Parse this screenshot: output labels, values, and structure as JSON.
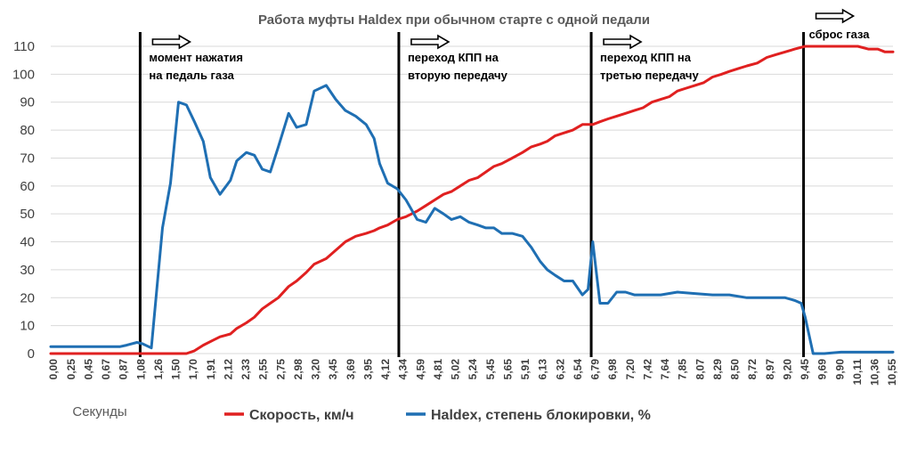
{
  "chart_data": {
    "type": "line",
    "title": "Работа муфты Haldex при обычном старте с одной педали",
    "xlabel": "Секунды",
    "ylabel": "",
    "ylim": [
      0,
      110
    ],
    "yticks": [
      0,
      10,
      20,
      30,
      40,
      50,
      60,
      70,
      80,
      90,
      100,
      110
    ],
    "grid": true,
    "legend_position": "bottom",
    "x_tick_labels": [
      "0,00",
      "0,25",
      "0,45",
      "0,67",
      "0,87",
      "1,08",
      "1,26",
      "1,50",
      "1,70",
      "1,91",
      "2,12",
      "2,33",
      "2,55",
      "2,75",
      "2,98",
      "3,20",
      "3,45",
      "3,69",
      "3,95",
      "4,12",
      "4,34",
      "4,59",
      "4,81",
      "5,02",
      "5,24",
      "5,45",
      "5,65",
      "5,91",
      "6,13",
      "6,32",
      "6,54",
      "6,79",
      "6,98",
      "7,20",
      "7,42",
      "7,64",
      "7,85",
      "8,07",
      "8,29",
      "8,50",
      "8,72",
      "8,97",
      "9,20",
      "9,45",
      "9,69",
      "9,90",
      "10,11",
      "10,36",
      "10,55"
    ],
    "series": [
      {
        "name": "Скорость, км/ч",
        "color": "#e02020",
        "x": [
          0,
          0.25,
          0.45,
          0.67,
          0.87,
          1.08,
          1.26,
          1.4,
          1.6,
          1.7,
          1.8,
          1.91,
          2.05,
          2.12,
          2.25,
          2.33,
          2.45,
          2.55,
          2.65,
          2.75,
          2.85,
          2.98,
          3.08,
          3.2,
          3.3,
          3.45,
          3.57,
          3.69,
          3.82,
          3.95,
          4.05,
          4.12,
          4.22,
          4.34,
          4.45,
          4.59,
          4.7,
          4.81,
          4.92,
          5.02,
          5.13,
          5.24,
          5.35,
          5.45,
          5.55,
          5.65,
          5.78,
          5.91,
          6.02,
          6.13,
          6.22,
          6.32,
          6.43,
          6.54,
          6.66,
          6.79,
          6.88,
          6.98,
          7.09,
          7.2,
          7.31,
          7.42,
          7.53,
          7.64,
          7.75,
          7.85,
          7.96,
          8.07,
          8.18,
          8.29,
          8.4,
          8.5,
          8.61,
          8.72,
          8.85,
          8.97,
          9.08,
          9.2,
          9.32,
          9.45,
          9.55,
          9.69,
          9.8,
          9.9,
          10.0,
          10.11,
          10.24,
          10.36,
          10.45,
          10.55
        ],
        "y": [
          0,
          0,
          0,
          0,
          0,
          0,
          0,
          0,
          0,
          0,
          1,
          3,
          5,
          6,
          7,
          9,
          11,
          13,
          16,
          18,
          20,
          24,
          26,
          29,
          32,
          34,
          37,
          40,
          42,
          43,
          44,
          45,
          46,
          48,
          49,
          51,
          53,
          55,
          57,
          58,
          60,
          62,
          63,
          65,
          67,
          68,
          70,
          72,
          74,
          75,
          76,
          78,
          79,
          80,
          82,
          82,
          83,
          84,
          85,
          86,
          87,
          88,
          90,
          91,
          92,
          94,
          95,
          96,
          97,
          99,
          100,
          101,
          102,
          103,
          104,
          106,
          107,
          108,
          109,
          110,
          110,
          110,
          110,
          110,
          110,
          110,
          109,
          109,
          108,
          108
        ]
      },
      {
        "name": "Haldex, степень блокировки,  %",
        "color": "#1f6fb3",
        "x": [
          0,
          0.25,
          0.45,
          0.67,
          0.87,
          0.95,
          1.08,
          1.15,
          1.26,
          1.4,
          1.5,
          1.6,
          1.7,
          1.8,
          1.91,
          2.0,
          2.12,
          2.25,
          2.33,
          2.45,
          2.55,
          2.65,
          2.75,
          2.85,
          2.98,
          3.08,
          3.2,
          3.3,
          3.45,
          3.57,
          3.69,
          3.82,
          3.95,
          4.05,
          4.12,
          4.22,
          4.34,
          4.45,
          4.59,
          4.7,
          4.81,
          4.92,
          5.02,
          5.13,
          5.24,
          5.35,
          5.45,
          5.55,
          5.65,
          5.78,
          5.91,
          6.02,
          6.13,
          6.22,
          6.32,
          6.43,
          6.54,
          6.66,
          6.73,
          6.79,
          6.88,
          6.98,
          7.09,
          7.2,
          7.31,
          7.42,
          7.64,
          7.85,
          8.07,
          8.29,
          8.5,
          8.72,
          8.97,
          9.2,
          9.32,
          9.4,
          9.45,
          9.55,
          9.69,
          9.9,
          10.11,
          10.36,
          10.55
        ],
        "y": [
          2.5,
          2.5,
          2.5,
          2.5,
          2.5,
          3,
          4,
          3.5,
          2,
          45,
          61,
          90,
          89,
          83,
          76,
          63,
          57,
          62,
          69,
          72,
          71,
          66,
          65,
          74,
          86,
          81,
          82,
          94,
          96,
          91,
          87,
          85,
          82,
          77,
          68,
          61,
          59,
          55,
          48,
          47,
          52,
          50,
          48,
          49,
          47,
          46,
          45,
          45,
          43,
          43,
          42,
          38,
          33,
          30,
          28,
          26,
          26,
          21,
          23,
          40,
          18,
          18,
          22,
          22,
          21,
          21,
          21,
          22,
          21.5,
          21,
          21,
          20,
          20,
          20,
          19,
          18,
          13,
          0,
          0,
          0.5,
          0.5,
          0.5,
          0.5
        ]
      }
    ],
    "vlines": [
      1.12,
      4.36,
      6.77,
      9.43
    ],
    "annotations": [
      {
        "text_lines": [
          "момент нажатия",
          "на педаль газа"
        ],
        "x": 1.12
      },
      {
        "text_lines": [
          "переход КПП на",
          "вторую передачу"
        ],
        "x": 4.36
      },
      {
        "text_lines": [
          "переход КПП на",
          "третью передачу"
        ],
        "x": 6.77
      },
      {
        "text_lines": [
          "сброс газа"
        ],
        "x": 9.43
      }
    ]
  }
}
